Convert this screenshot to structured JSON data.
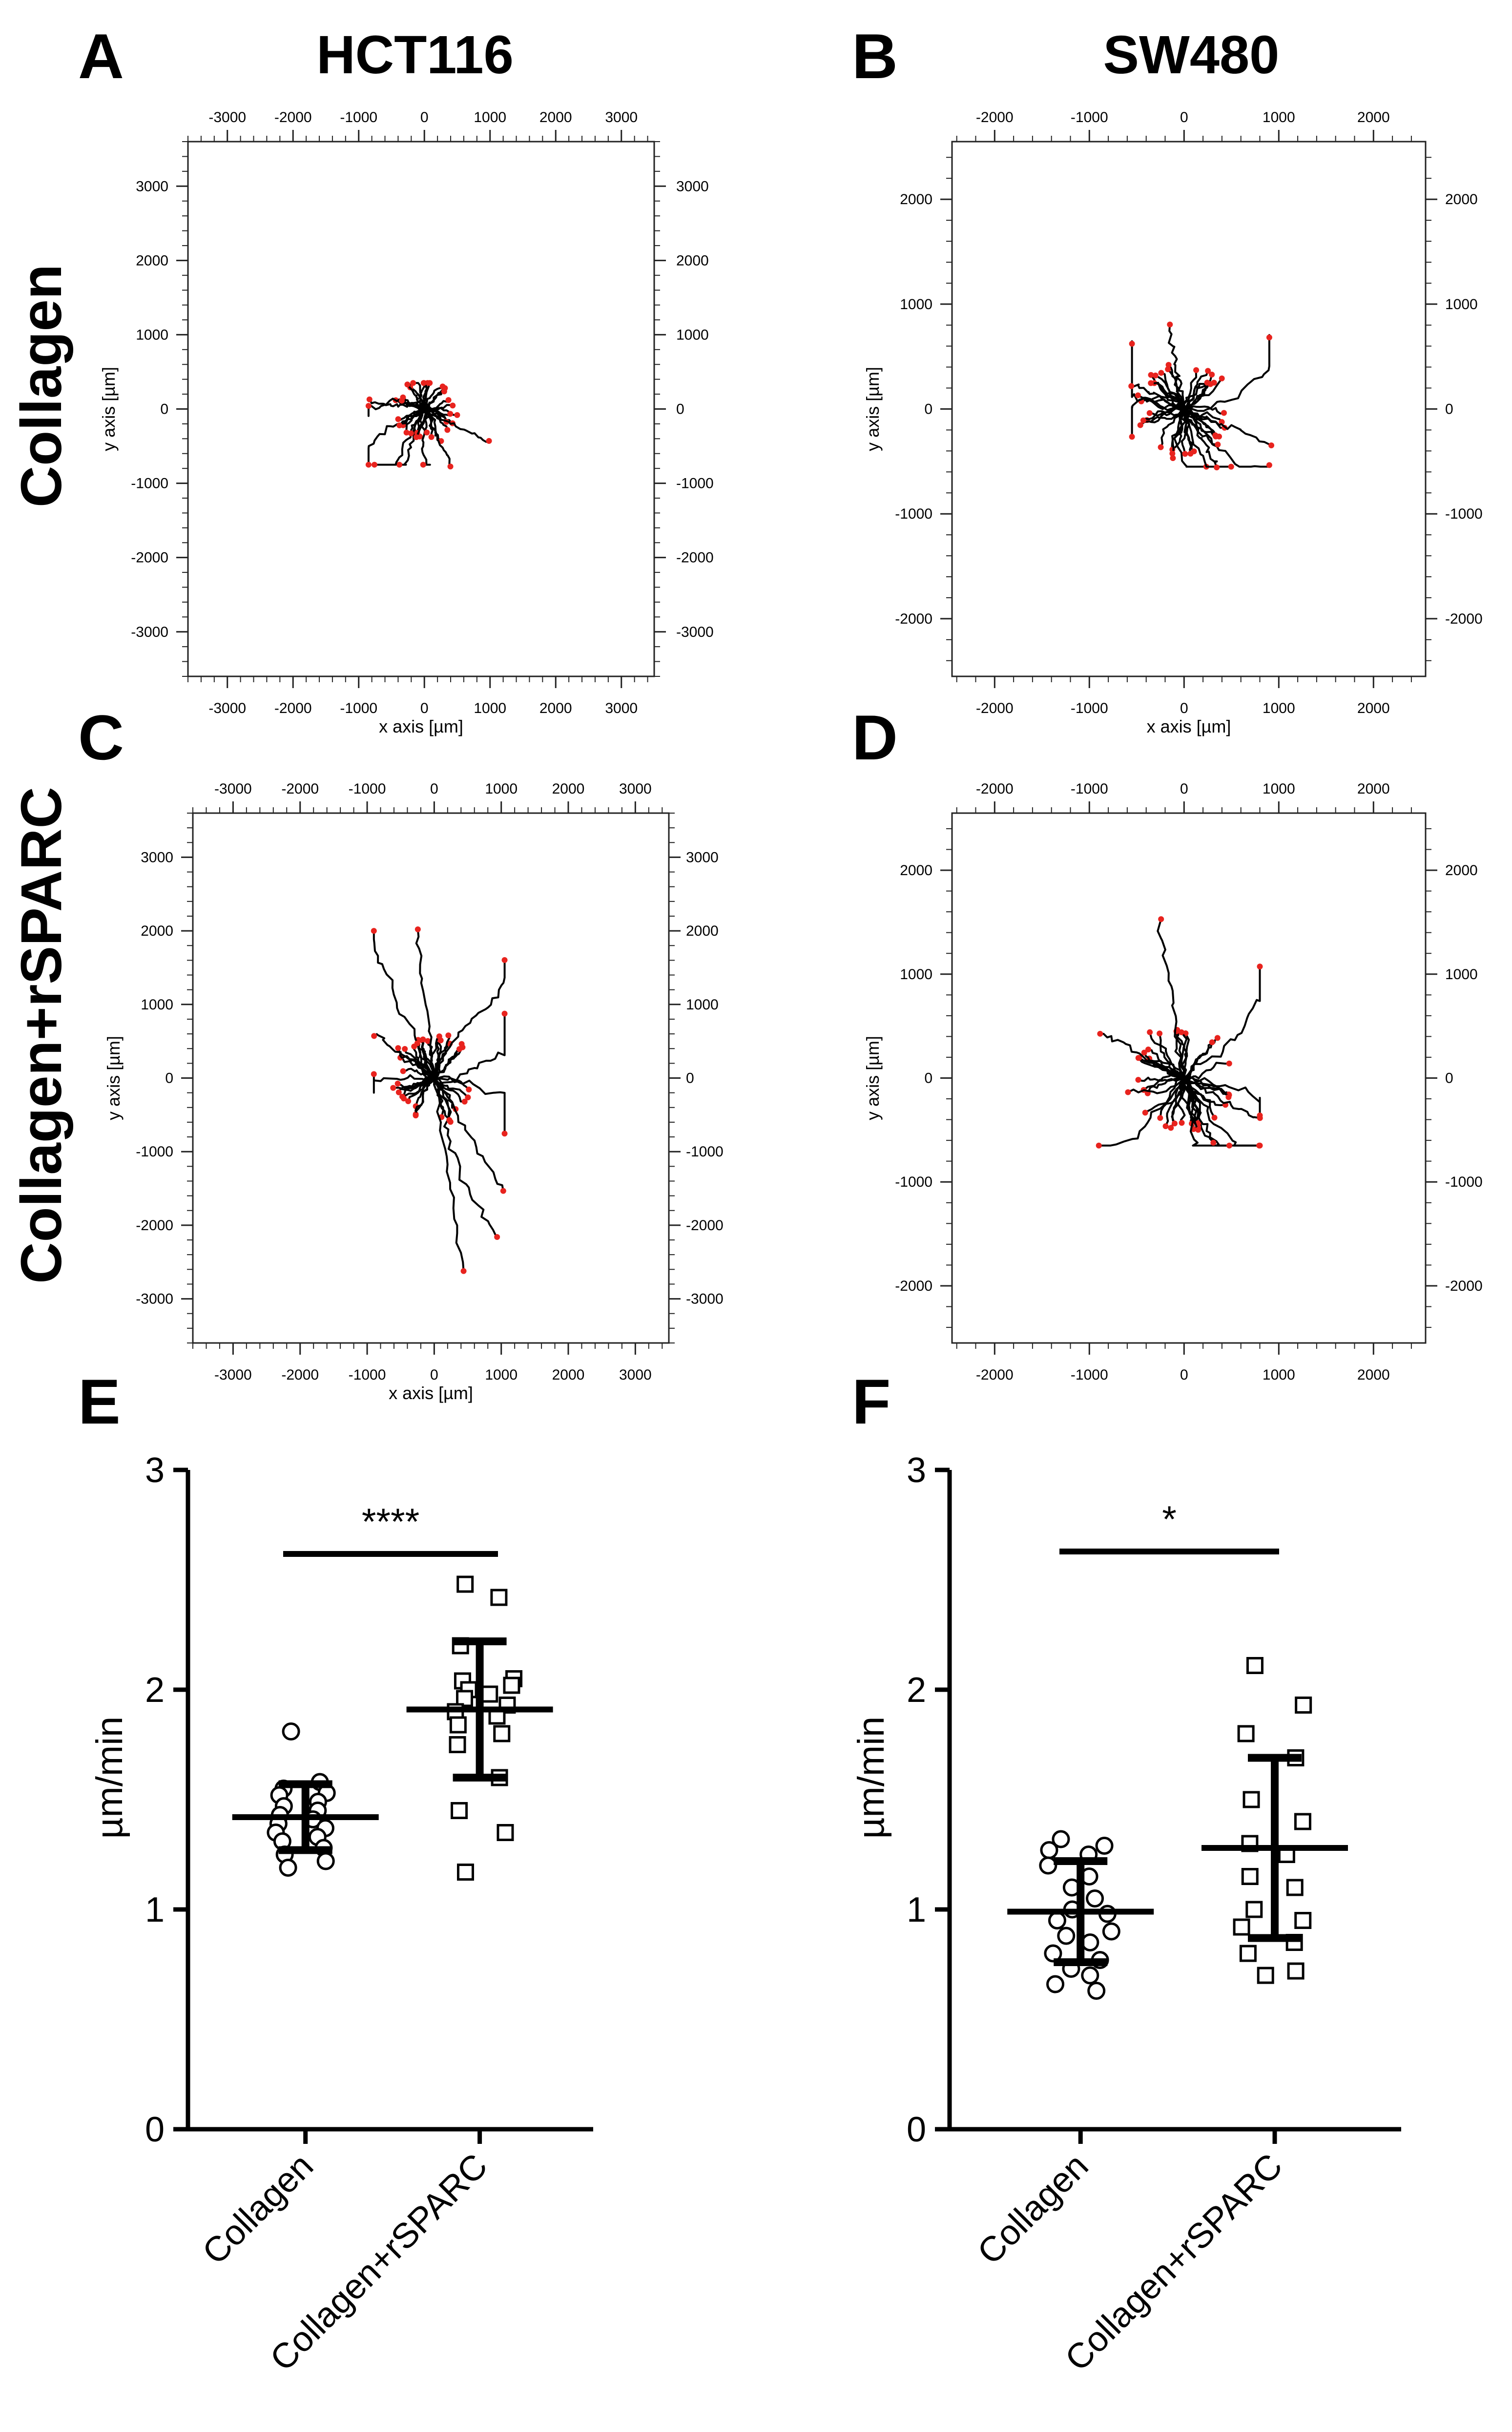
{
  "panel_letters": [
    "A",
    "B",
    "C",
    "D",
    "E",
    "F"
  ],
  "column_titles": [
    "HCT116",
    "SW480"
  ],
  "row_labels": [
    "Collagen",
    "Collagen+rSPARC"
  ],
  "colors": {
    "track": "#000000",
    "endpoint": "#e8231e",
    "axis": "#222222",
    "background": "#ffffff"
  },
  "chart_data": [
    {
      "panel": "A",
      "type": "track",
      "title": "HCT116",
      "xlabel": "x axis [µm]",
      "ylabel": "y axis [µm]",
      "xlim": [
        -3600,
        3500
      ],
      "ylim": [
        -3600,
        3600
      ],
      "xticks": [
        -3000,
        -2000,
        -1000,
        0,
        1000,
        2000,
        3000
      ],
      "yticks": [
        -3000,
        -2000,
        -1000,
        0,
        1000,
        2000,
        3000
      ],
      "track_extent": {
        "xmin": -850,
        "xmax": 1000,
        "ymin": -750,
        "ymax": 350
      },
      "n_tracks": 35
    },
    {
      "panel": "B",
      "type": "track",
      "title": "SW480",
      "xlabel": "x axis [µm]",
      "ylabel": "y axis [µm]",
      "xlim": [
        -2450,
        2550
      ],
      "ylim": [
        -2550,
        2550
      ],
      "xticks": [
        -2000,
        -1000,
        0,
        1000,
        2000
      ],
      "yticks": [
        -2000,
        -1000,
        0,
        1000,
        2000
      ],
      "track_extent": {
        "xmin": -550,
        "xmax": 900,
        "ymin": -550,
        "ymax": 800
      },
      "n_tracks": 40
    },
    {
      "panel": "C",
      "type": "track",
      "xlabel": "x axis [µm]",
      "ylabel": "y axis [µm]",
      "xlim": [
        -3600,
        3500
      ],
      "ylim": [
        -3600,
        3600
      ],
      "xticks": [
        -3000,
        -2000,
        -1000,
        0,
        1000,
        2000,
        3000
      ],
      "yticks": [
        -3000,
        -2000,
        -1000,
        0,
        1000,
        2000,
        3000
      ],
      "track_extent": {
        "xmin": -900,
        "xmax": 1050,
        "ymin": -2600,
        "ymax": 2000
      },
      "n_tracks": 40
    },
    {
      "panel": "D",
      "type": "track",
      "xlabel": "",
      "ylabel": "y axis [µm]",
      "xlim": [
        -2450,
        2550
      ],
      "ylim": [
        -2550,
        2550
      ],
      "xticks": [
        -2000,
        -1000,
        0,
        1000,
        2000
      ],
      "yticks": [
        -2000,
        -1000,
        0,
        1000,
        2000
      ],
      "track_extent": {
        "xmin": -900,
        "xmax": 800,
        "ymin": -650,
        "ymax": 1500
      },
      "n_tracks": 40
    },
    {
      "panel": "E",
      "type": "scatter",
      "ylabel": "µm/min",
      "ylim": [
        0,
        3
      ],
      "yticks": [
        0,
        1,
        2,
        3
      ],
      "categories": [
        "Collagen",
        "Collagen+rSPARC"
      ],
      "significance": "****",
      "series": [
        {
          "name": "Collagen",
          "marker": "circle",
          "mean": 1.42,
          "sd": 0.15,
          "values": [
            1.81,
            1.58,
            1.55,
            1.53,
            1.52,
            1.49,
            1.47,
            1.45,
            1.43,
            1.41,
            1.39,
            1.37,
            1.35,
            1.33,
            1.31,
            1.28,
            1.25,
            1.22,
            1.19
          ]
        },
        {
          "name": "Collagen+rSPARC",
          "marker": "square",
          "mean": 1.91,
          "sd": 0.31,
          "values": [
            2.48,
            2.42,
            2.2,
            2.05,
            2.04,
            2.02,
            2.0,
            1.98,
            1.96,
            1.93,
            1.9,
            1.88,
            1.84,
            1.8,
            1.75,
            1.6,
            1.45,
            1.35,
            1.17
          ]
        }
      ]
    },
    {
      "panel": "F",
      "type": "scatter",
      "ylabel": "µm/min",
      "ylim": [
        0,
        3
      ],
      "yticks": [
        0,
        1,
        2,
        3
      ],
      "categories": [
        "Collagen",
        "Collagen+rSPARC"
      ],
      "significance": "*",
      "series": [
        {
          "name": "Collagen",
          "marker": "circle",
          "mean": 0.99,
          "sd": 0.23,
          "values": [
            1.32,
            1.29,
            1.27,
            1.25,
            1.2,
            1.15,
            1.1,
            1.05,
            1.0,
            0.98,
            0.95,
            0.9,
            0.88,
            0.85,
            0.8,
            0.77,
            0.73,
            0.7,
            0.66,
            0.63
          ]
        },
        {
          "name": "Collagen+rSPARC",
          "marker": "square",
          "mean": 1.28,
          "sd": 0.41,
          "values": [
            2.11,
            1.93,
            1.8,
            1.69,
            1.5,
            1.4,
            1.3,
            1.25,
            1.15,
            1.1,
            1.0,
            0.95,
            0.92,
            0.85,
            0.8,
            0.72,
            0.7
          ]
        }
      ]
    }
  ]
}
